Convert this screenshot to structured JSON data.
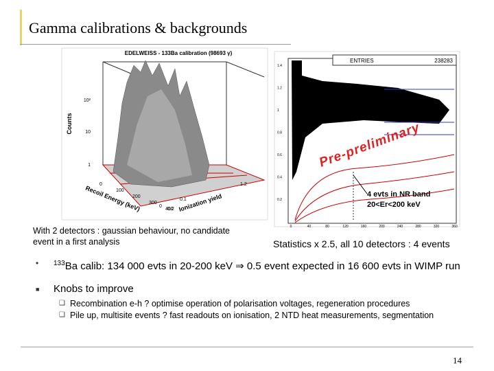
{
  "header": {
    "title": "Gamma calibrations & backgrounds"
  },
  "figures": [
    {
      "title": "EDELWEISS - 133Ba calibration (98693 γ)",
      "y_label": "Counts",
      "x_label": "Recoil Energy (keV)",
      "z_label": "Ionization yield",
      "y_ticks": [
        "10²",
        "10",
        "1"
      ],
      "x_ticks": [
        "0",
        "100",
        "200",
        "300",
        "400"
      ],
      "z_ticks": [
        "0",
        "0.1",
        "0.2",
        "1.2"
      ],
      "caption": "With 2 detectors : gaussian behaviour, no candidate event in a first analysis"
    },
    {
      "stats_label": "ENTRIES",
      "stats_value": "238283",
      "watermark": "Pre-preliminary",
      "annotation": [
        "4 evts in NR band",
        "20<Er<200 keV"
      ],
      "y_ticks": [
        "1.4",
        "1.2",
        "1",
        "0.8",
        "0.6",
        "0.4",
        "0.2"
      ],
      "x_ticks": [
        "0",
        "40",
        "80",
        "120",
        "160",
        "200",
        "240",
        "280",
        "320",
        "360"
      ],
      "caption": "Statistics x 2.5, all 10 detectors : 4 events"
    }
  ],
  "bullets": [
    {
      "marker": "•",
      "sup": "133",
      "text": "Ba calib: 134 000 evts in 20-200 keV ⇒ 0.5 event expected in 16 600  evts in WIMP run"
    },
    {
      "marker": "■",
      "text": "Knobs to improve",
      "sub": [
        {
          "marker": "❑",
          "text": "Recombination e-h ? optimise operation of polarisation voltages, regeneration procedures"
        },
        {
          "marker": "❑",
          "text": "Pile up, multisite events ? fast readouts on ionisation, 2 NTD heat measurements, segmentation"
        }
      ]
    }
  ],
  "footer": {
    "page": "14"
  }
}
